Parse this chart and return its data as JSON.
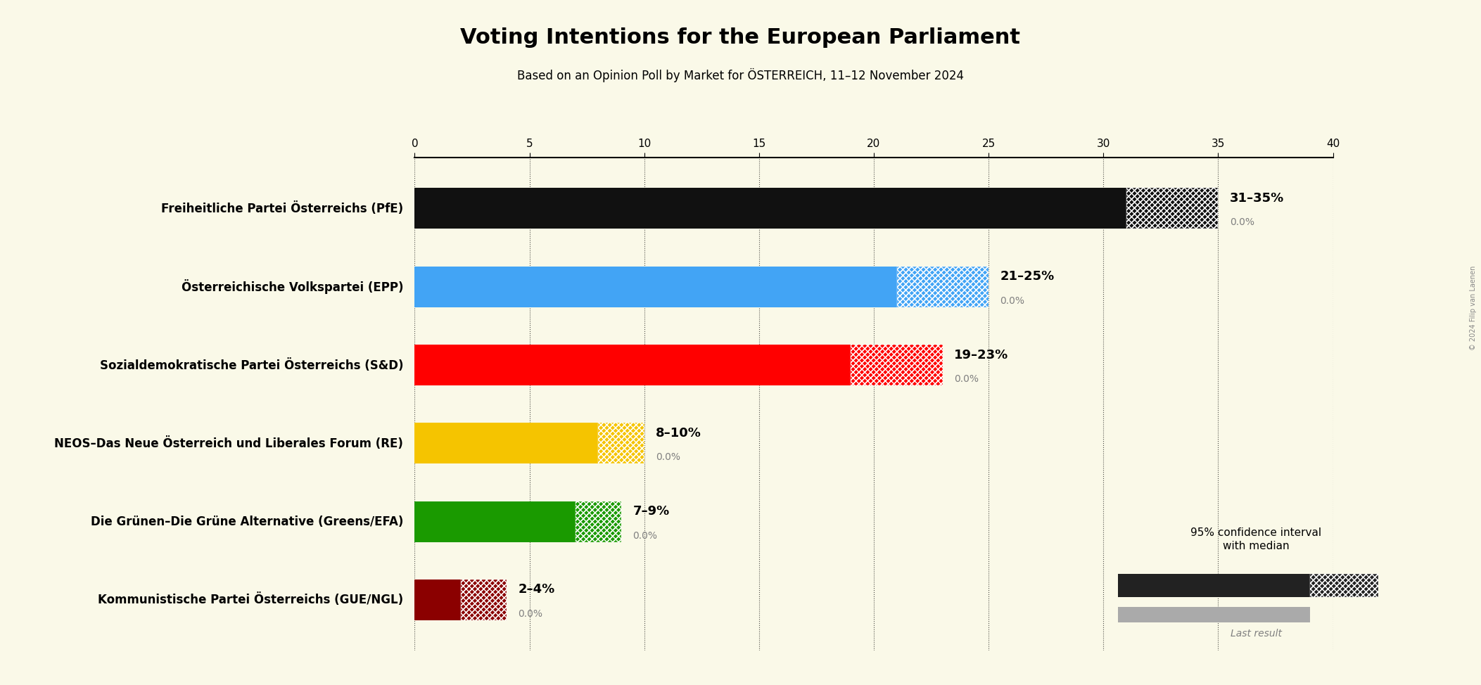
{
  "title": "Voting Intentions for the European Parliament",
  "subtitle": "Based on an Opinion Poll by Market for ÖSTERREICH, 11–12 November 2024",
  "background_color": "#faf9e8",
  "parties": [
    "Freiheitliche Partei Österreichs (PfE)",
    "Österreichische Volkspartei (EPP)",
    "Sozialdemokratische Partei Österreichs (S&D)",
    "NEOS–Das Neue Österreich und Liberales Forum (RE)",
    "Die Grünen–Die Grüne Alternative (Greens/EFA)",
    "Kommunistische Partei Österreichs (GUE/NGL)"
  ],
  "ci_low": [
    31,
    21,
    19,
    8,
    7,
    2
  ],
  "ci_high": [
    35,
    25,
    23,
    10,
    9,
    4
  ],
  "bar_colors": [
    "#111111",
    "#42a4f5",
    "#ff0000",
    "#f5c400",
    "#1a9a00",
    "#8b0000"
  ],
  "range_labels": [
    "31–35%",
    "21–25%",
    "19–23%",
    "8–10%",
    "7–9%",
    "2–4%"
  ],
  "last_result_labels": [
    "0.0%",
    "0.0%",
    "0.0%",
    "0.0%",
    "0.0%",
    "0.0%"
  ],
  "xlim": [
    0,
    40
  ],
  "xtick_step": 5,
  "legend_text": "95% confidence interval\nwith median",
  "legend_last_result": "Last result",
  "copyright_text": "© 2024 Filip van Laenen"
}
